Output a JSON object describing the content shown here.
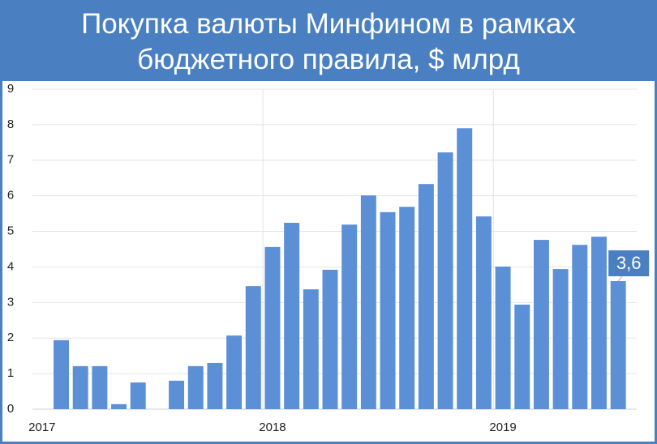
{
  "chart_data": {
    "type": "bar",
    "title": "Покупка валюты Минфином в рамках бюджетного правила, $ млрд",
    "categories": [
      "2017",
      null,
      null,
      null,
      null,
      null,
      null,
      null,
      null,
      null,
      null,
      null,
      "2018",
      null,
      null,
      null,
      null,
      null,
      null,
      null,
      null,
      null,
      null,
      null,
      "2019",
      null,
      null,
      null,
      null,
      null,
      null
    ],
    "values": [
      null,
      1.94,
      1.21,
      1.21,
      0.14,
      0.75,
      null,
      0.8,
      1.21,
      1.3,
      2.07,
      3.46,
      4.56,
      5.24,
      3.37,
      3.92,
      5.19,
      6.01,
      5.54,
      5.69,
      6.33,
      7.22,
      7.9,
      5.42,
      4.01,
      2.94,
      4.76,
      3.94,
      4.62,
      4.85,
      3.6
    ],
    "value_labels": [
      null,
      null,
      null,
      null,
      null,
      null,
      null,
      null,
      null,
      null,
      null,
      null,
      null,
      null,
      null,
      null,
      null,
      null,
      null,
      null,
      null,
      null,
      null,
      null,
      null,
      null,
      null,
      null,
      null,
      null,
      "3,6"
    ],
    "color": "#5b8fd6",
    "ylim": [
      0,
      9
    ],
    "yticks": [
      0,
      1,
      2,
      3,
      4,
      5,
      6,
      7,
      8,
      9
    ],
    "grid": true
  }
}
